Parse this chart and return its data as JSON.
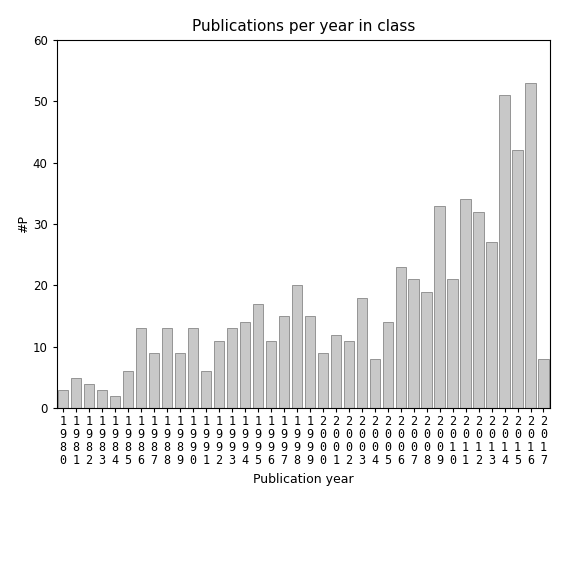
{
  "title": "Publications per year in class",
  "xlabel": "Publication year",
  "ylabel": "#P",
  "ylim": [
    0,
    60
  ],
  "yticks": [
    0,
    10,
    20,
    30,
    40,
    50,
    60
  ],
  "bar_color": "#c8c8c8",
  "bar_edgecolor": "#888888",
  "categories": [
    "1\n9\n8\n0",
    "1\n9\n8\n1",
    "1\n9\n8\n2",
    "1\n9\n8\n3",
    "1\n9\n8\n4",
    "1\n9\n8\n5",
    "1\n9\n8\n6",
    "1\n9\n8\n7",
    "1\n9\n8\n8",
    "1\n9\n8\n9",
    "1\n9\n9\n0",
    "1\n9\n9\n1",
    "1\n9\n9\n2",
    "1\n9\n9\n3",
    "1\n9\n9\n4",
    "1\n9\n9\n5",
    "1\n9\n9\n6",
    "1\n9\n9\n7",
    "1\n9\n9\n8",
    "1\n9\n9\n9",
    "2\n0\n0\n0",
    "2\n0\n0\n1",
    "2\n0\n0\n2",
    "2\n0\n0\n3",
    "2\n0\n0\n4",
    "2\n0\n0\n5",
    "2\n0\n0\n6",
    "2\n0\n0\n7",
    "2\n0\n0\n8",
    "2\n0\n0\n9",
    "2\n0\n1\n0",
    "2\n0\n1\n1",
    "2\n0\n1\n2",
    "2\n0\n1\n3",
    "2\n0\n1\n4",
    "2\n0\n1\n5",
    "2\n0\n1\n6",
    "2\n0\n1\n7"
  ],
  "values": [
    3,
    5,
    4,
    3,
    2,
    6,
    13,
    9,
    13,
    9,
    13,
    6,
    11,
    13,
    14,
    17,
    11,
    15,
    20,
    15,
    9,
    12,
    11,
    18,
    8,
    14,
    23,
    21,
    19,
    33,
    21,
    34,
    32,
    27,
    51,
    42,
    53,
    8
  ],
  "background_color": "#ffffff",
  "title_fontsize": 11,
  "label_fontsize": 9,
  "tick_fontsize": 8.5
}
